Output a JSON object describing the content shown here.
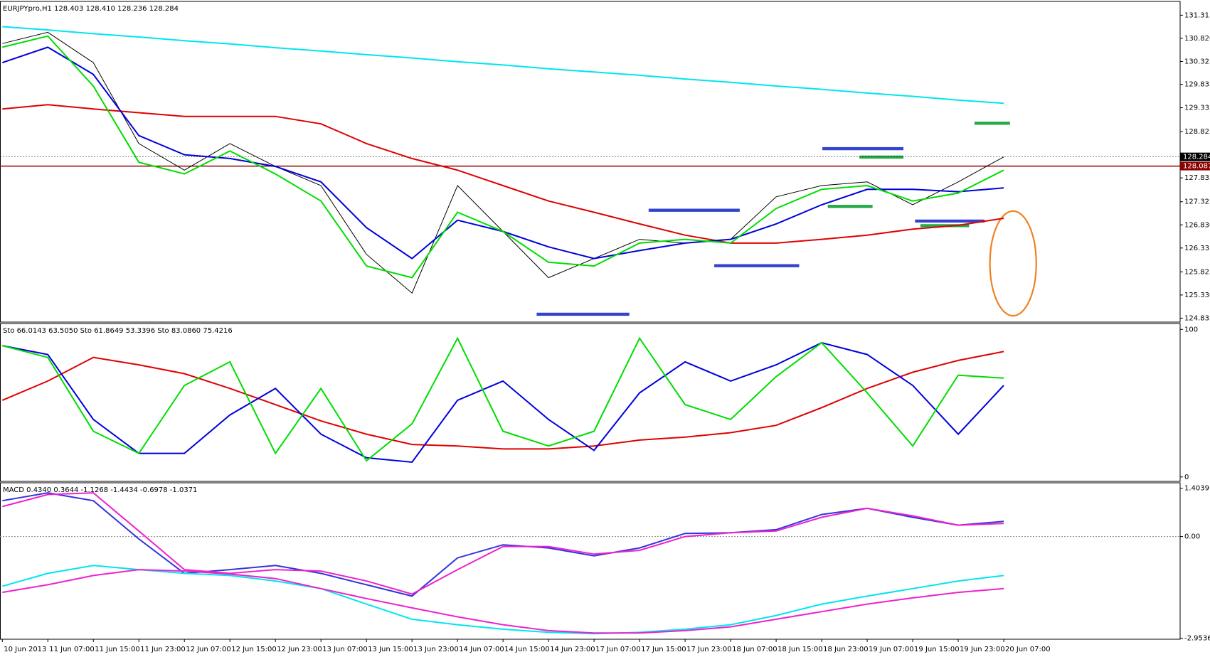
{
  "chart_data": [
    {
      "type": "line",
      "title": "EURJPYpro,H1  128.403 128.410 128.236 128.284",
      "categories": [
        "10 Jun 2013",
        "11 Jun 07:00",
        "11 Jun 15:00",
        "11 Jun 23:00",
        "12 Jun 07:00",
        "12 Jun 15:00",
        "12 Jun 23:00",
        "13 Jun 07:00",
        "13 Jun 15:00",
        "13 Jun 23:00",
        "14 Jun 07:00",
        "14 Jun 15:00",
        "14 Jun 23:00",
        "17 Jun 07:00",
        "17 Jun 15:00",
        "17 Jun 23:00",
        "18 Jun 07:00",
        "18 Jun 15:00",
        "18 Jun 23:00",
        "19 Jun 07:00",
        "19 Jun 15:00",
        "19 Jun 23:00",
        "20 Jun 07:00"
      ],
      "ylim": [
        124.75,
        131.61
      ],
      "yticks": [
        131.315,
        {
          "value": 130.82,
          "label": "130.820"
        },
        130.325,
        129.835,
        129.335,
        128.825,
        127.835,
        127.325,
        {
          "value": 126.83,
          "label": "126.830"
        },
        126.335,
        125.825,
        {
          "value": 125.33,
          "label": "125.330"
        },
        124.835
      ],
      "hlines": [
        {
          "value": 128.087,
          "color": "#8b0000"
        },
        {
          "value": 128.284,
          "color": "#000000"
        }
      ],
      "series": [
        {
          "color": "#000000",
          "values": [
            130.71,
            130.95,
            130.3,
            128.57,
            128.0,
            128.57,
            128.08,
            127.67,
            126.2,
            125.37,
            127.67,
            126.69,
            125.7,
            126.11,
            126.52,
            126.44,
            126.52,
            127.43,
            127.67,
            127.75,
            127.26,
            127.75,
            128.284
          ]
        },
        {
          "color": "#00e5ee",
          "values": [
            131.07,
            131.0,
            130.92,
            130.85,
            130.77,
            130.7,
            130.62,
            130.55,
            130.47,
            130.4,
            130.32,
            130.25,
            130.17,
            130.1,
            130.03,
            129.95,
            129.88,
            129.8,
            129.73,
            129.65,
            129.58,
            129.5,
            129.43
          ]
        },
        {
          "color": "#e00000",
          "values": [
            129.31,
            129.4,
            129.31,
            129.23,
            129.15,
            129.15,
            129.15,
            128.99,
            128.57,
            128.25,
            128.0,
            127.67,
            127.34,
            127.1,
            126.85,
            126.61,
            126.44,
            126.44,
            126.52,
            126.61,
            126.74,
            126.82,
            126.97
          ]
        },
        {
          "color": "#0000dd",
          "values": [
            130.3,
            130.63,
            130.05,
            128.74,
            128.33,
            128.25,
            128.08,
            127.75,
            126.77,
            126.11,
            126.93,
            126.69,
            126.36,
            126.11,
            126.28,
            126.44,
            126.52,
            126.85,
            127.26,
            127.59,
            127.59,
            127.54,
            127.62
          ]
        },
        {
          "color": "#00dd00",
          "values": [
            130.63,
            130.87,
            129.8,
            128.17,
            127.92,
            128.41,
            127.92,
            127.34,
            125.95,
            125.7,
            127.1,
            126.69,
            126.03,
            125.95,
            126.44,
            126.52,
            126.44,
            127.18,
            127.59,
            127.67,
            127.34,
            127.51,
            128.0
          ]
        }
      ]
    },
    {
      "type": "line",
      "title": "Sto 66.0143 63.5050  Sto 61.8649 53.3396  Sto 83.0860 75.4216",
      "ylim": [
        -3,
        104
      ],
      "yticks": [
        100,
        0
      ],
      "series": [
        {
          "color": "#e00000",
          "values": [
            52,
            65,
            81,
            76,
            70,
            60,
            49,
            38,
            29,
            22,
            21,
            19,
            19,
            21,
            25,
            27,
            30,
            35,
            47,
            60,
            71,
            79,
            85
          ]
        },
        {
          "color": "#0000dd",
          "values": [
            89,
            83,
            39,
            16,
            16,
            42,
            60,
            29,
            13,
            10,
            52,
            65,
            39,
            18,
            57,
            78,
            65,
            76,
            91,
            83,
            62,
            29,
            62
          ]
        },
        {
          "color": "#00dd00",
          "values": [
            89,
            81,
            31,
            16,
            62,
            78,
            16,
            60,
            11,
            36,
            94,
            31,
            21,
            31,
            94,
            49,
            39,
            68,
            91,
            57,
            21,
            69,
            67
          ]
        }
      ]
    },
    {
      "type": "line",
      "title": "MACD 0.4340 0.3644 -1.1268 -1.4434 -0.6978 -1.0371",
      "ylim": [
        -2.98,
        1.56
      ],
      "yticks": [
        1.4039,
        {
          "value": 0,
          "label": "0.00"
        },
        -2.9536
      ],
      "series": [
        {
          "color": "#3333dd",
          "values": [
            1.04,
            1.27,
            1.04,
            -0.07,
            -1.07,
            -0.96,
            -0.84,
            -1.07,
            -1.4,
            -1.73,
            -0.62,
            -0.24,
            -0.33,
            -0.56,
            -0.33,
            0.09,
            0.11,
            0.2,
            0.64,
            0.82,
            0.56,
            0.33,
            0.44
          ]
        },
        {
          "color": "#ee22cc",
          "values": [
            0.87,
            1.22,
            1.27,
            0.16,
            -0.96,
            -1.07,
            -0.96,
            -1.0,
            -1.29,
            -1.67,
            -0.96,
            -0.29,
            -0.29,
            -0.51,
            -0.4,
            0,
            0.11,
            0.16,
            0.56,
            0.82,
            0.6,
            0.33,
            0.38
          ]
        },
        {
          "color": "#00e5ee",
          "values": [
            -1.44,
            -1.07,
            -0.84,
            -0.96,
            -1.07,
            -1.13,
            -1.29,
            -1.51,
            -1.96,
            -2.4,
            -2.56,
            -2.69,
            -2.78,
            -2.82,
            -2.78,
            -2.69,
            -2.56,
            -2.29,
            -1.96,
            -1.73,
            -1.51,
            -1.29,
            -1.13
          ]
        },
        {
          "color": "#ee22cc",
          "values": [
            -1.62,
            -1.4,
            -1.13,
            -0.96,
            -1.0,
            -1.09,
            -1.22,
            -1.51,
            -1.8,
            -2.07,
            -2.33,
            -2.56,
            -2.73,
            -2.8,
            -2.8,
            -2.73,
            -2.62,
            -2.4,
            -2.18,
            -1.96,
            -1.78,
            -1.62,
            -1.51
          ]
        }
      ]
    }
  ]
}
